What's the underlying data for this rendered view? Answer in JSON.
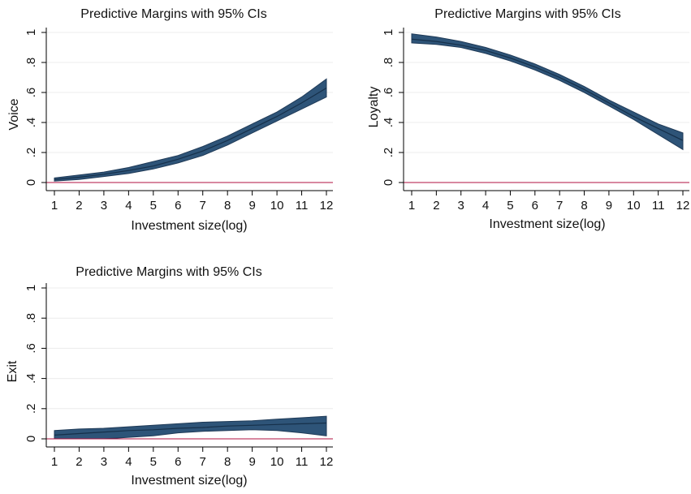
{
  "chart_data": [
    {
      "type": "line",
      "title": "Predictive Margins with 95% CIs",
      "xlabel": "Investment size(log)",
      "ylabel": "Voice",
      "x": [
        1,
        2,
        3,
        4,
        5,
        6,
        7,
        8,
        9,
        10,
        11,
        12
      ],
      "xticks": [
        "1",
        "2",
        "3",
        "4",
        "5",
        "6",
        "7",
        "8",
        "9",
        "10",
        "11",
        "12"
      ],
      "yticks": [
        "0",
        ".2",
        ".4",
        ".6",
        ".8",
        "1"
      ],
      "ylim": [
        0,
        1
      ],
      "reference_line": 0,
      "grid": true,
      "series": [
        {
          "estimate": [
            0.02,
            0.035,
            0.055,
            0.08,
            0.11,
            0.155,
            0.21,
            0.28,
            0.36,
            0.44,
            0.53,
            0.63
          ],
          "ci_lower": [
            0.01,
            0.02,
            0.04,
            0.06,
            0.09,
            0.13,
            0.18,
            0.25,
            0.33,
            0.41,
            0.49,
            0.57
          ],
          "ci_upper": [
            0.03,
            0.05,
            0.07,
            0.1,
            0.14,
            0.18,
            0.24,
            0.31,
            0.39,
            0.47,
            0.57,
            0.69
          ]
        }
      ]
    },
    {
      "type": "line",
      "title": "Predictive Margins with 95% CIs",
      "xlabel": "Investment size(log)",
      "ylabel": "Loyalty",
      "x": [
        1,
        2,
        3,
        4,
        5,
        6,
        7,
        8,
        9,
        10,
        11,
        12
      ],
      "xticks": [
        "1",
        "2",
        "3",
        "4",
        "5",
        "6",
        "7",
        "8",
        "9",
        "10",
        "11",
        "12"
      ],
      "yticks": [
        "0",
        ".2",
        ".4",
        ".6",
        ".8",
        "1"
      ],
      "ylim": [
        0,
        1
      ],
      "reference_line": 0,
      "grid": true,
      "series": [
        {
          "estimate": [
            0.955,
            0.94,
            0.915,
            0.88,
            0.83,
            0.77,
            0.7,
            0.62,
            0.53,
            0.44,
            0.36,
            0.28
          ],
          "ci_lower": [
            0.93,
            0.92,
            0.9,
            0.86,
            0.81,
            0.75,
            0.68,
            0.6,
            0.51,
            0.42,
            0.32,
            0.22
          ],
          "ci_upper": [
            0.99,
            0.97,
            0.94,
            0.9,
            0.85,
            0.79,
            0.72,
            0.64,
            0.55,
            0.47,
            0.39,
            0.33
          ]
        }
      ]
    },
    {
      "type": "line",
      "title": "Predictive Margins with 95% CIs",
      "xlabel": "Investment size(log)",
      "ylabel": "Exit",
      "x": [
        1,
        2,
        3,
        4,
        5,
        6,
        7,
        8,
        9,
        10,
        11,
        12
      ],
      "xticks": [
        "1",
        "2",
        "3",
        "4",
        "5",
        "6",
        "7",
        "8",
        "9",
        "10",
        "11",
        "12"
      ],
      "yticks": [
        "0",
        ".2",
        ".4",
        ".6",
        ".8",
        "1"
      ],
      "ylim": [
        0,
        1
      ],
      "reference_line": 0,
      "grid": true,
      "series": [
        {
          "estimate": [
            0.025,
            0.035,
            0.045,
            0.055,
            0.06,
            0.07,
            0.075,
            0.085,
            0.09,
            0.095,
            0.1,
            0.105
          ],
          "ci_lower": [
            0.0,
            0.0,
            0.0,
            0.01,
            0.02,
            0.04,
            0.05,
            0.055,
            0.06,
            0.055,
            0.04,
            0.02
          ],
          "ci_upper": [
            0.055,
            0.065,
            0.07,
            0.08,
            0.09,
            0.1,
            0.11,
            0.115,
            0.12,
            0.13,
            0.14,
            0.15
          ]
        }
      ]
    }
  ],
  "colors": {
    "band": "#2e5478",
    "band_edge": "#1f3a57",
    "line": "#16304a",
    "reference": "#b01040",
    "grid": "#ececec",
    "axis": "#000000"
  }
}
